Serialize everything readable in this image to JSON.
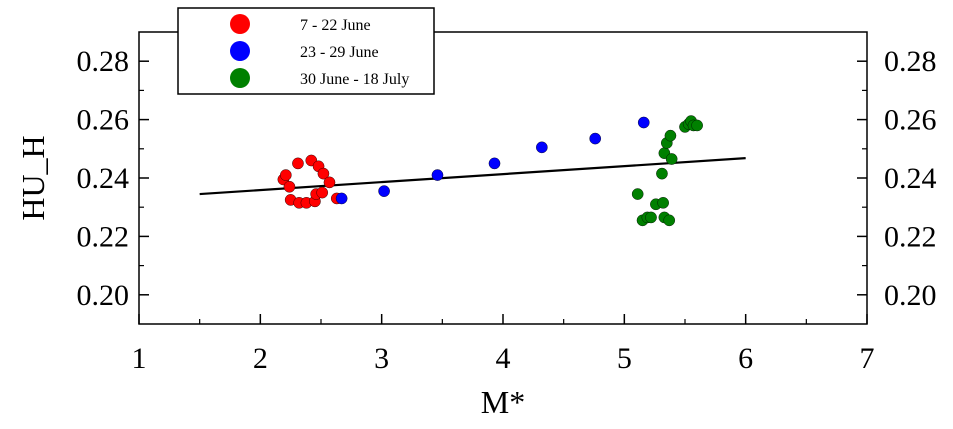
{
  "chart_data": {
    "type": "scatter",
    "title": "",
    "xlabel": "M*",
    "ylabel": "HU_H",
    "xlim": [
      1,
      7
    ],
    "ylim": [
      0.19,
      0.29
    ],
    "x_ticks": [
      "1",
      "2",
      "3",
      "4",
      "5",
      "6",
      "7"
    ],
    "y_ticks": [
      "0.20",
      "0.22",
      "0.24",
      "0.26",
      "0.28"
    ],
    "y_tick_values": [
      0.2,
      0.22,
      0.24,
      0.26,
      0.28
    ],
    "x_minor_ticks": [
      1.5,
      2.5,
      3.5,
      4.5,
      5.5,
      6.5
    ],
    "y_minor_ticks": [
      0.21,
      0.23,
      0.25,
      0.27
    ],
    "grid": false,
    "legend_position": "top-left",
    "series": [
      {
        "name": "7 - 22 June",
        "color": "#ff0000",
        "points": [
          [
            2.19,
            0.2395
          ],
          [
            2.21,
            0.241
          ],
          [
            2.24,
            0.237
          ],
          [
            2.25,
            0.2325
          ],
          [
            2.31,
            0.245
          ],
          [
            2.32,
            0.2315
          ],
          [
            2.38,
            0.2315
          ],
          [
            2.42,
            0.246
          ],
          [
            2.45,
            0.232
          ],
          [
            2.46,
            0.2345
          ],
          [
            2.48,
            0.244
          ],
          [
            2.51,
            0.235
          ],
          [
            2.52,
            0.2415
          ],
          [
            2.57,
            0.2385
          ],
          [
            2.63,
            0.233
          ]
        ]
      },
      {
        "name": "23 - 29 June",
        "color": "#0000ff",
        "points": [
          [
            2.67,
            0.233
          ],
          [
            3.02,
            0.2355
          ],
          [
            3.46,
            0.241
          ],
          [
            3.93,
            0.245
          ],
          [
            4.32,
            0.2505
          ],
          [
            4.76,
            0.2535
          ],
          [
            5.16,
            0.259
          ]
        ]
      },
      {
        "name": "30 June - 18 July",
        "color": "#008000",
        "points": [
          [
            5.11,
            0.2345
          ],
          [
            5.15,
            0.2255
          ],
          [
            5.19,
            0.2265
          ],
          [
            5.22,
            0.2265
          ],
          [
            5.26,
            0.231
          ],
          [
            5.31,
            0.2415
          ],
          [
            5.32,
            0.2315
          ],
          [
            5.33,
            0.2485
          ],
          [
            5.33,
            0.2265
          ],
          [
            5.35,
            0.252
          ],
          [
            5.37,
            0.2255
          ],
          [
            5.38,
            0.2545
          ],
          [
            5.39,
            0.2465
          ],
          [
            5.5,
            0.2575
          ],
          [
            5.53,
            0.2585
          ],
          [
            5.55,
            0.2595
          ],
          [
            5.57,
            0.258
          ],
          [
            5.6,
            0.258
          ]
        ]
      }
    ],
    "trendline": {
      "type": "linear",
      "color": "#000000",
      "points": [
        [
          1.5,
          0.2345
        ],
        [
          6.0,
          0.2468
        ]
      ]
    }
  }
}
